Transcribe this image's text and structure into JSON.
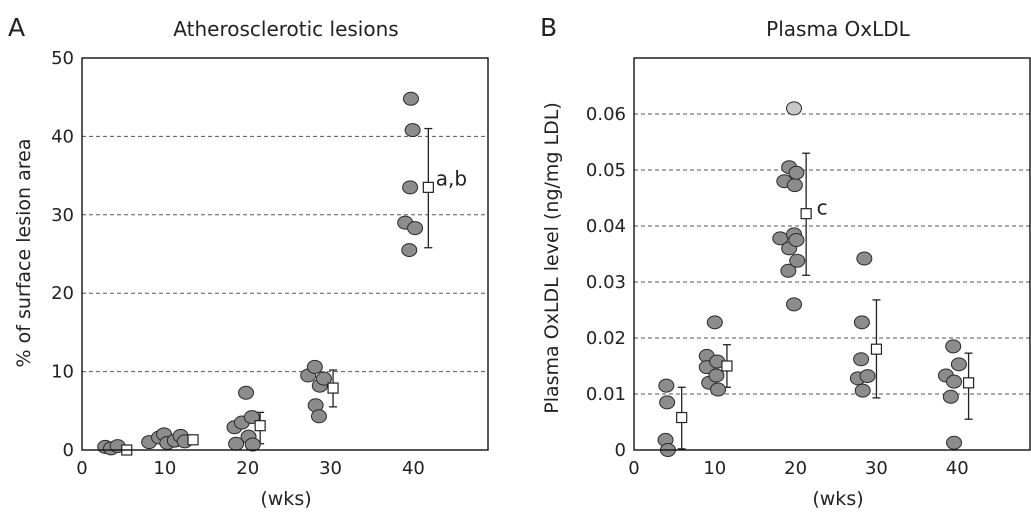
{
  "chart_data": [
    {
      "type": "scatter",
      "panel_label": "A",
      "title": "Atherosclerotic lesions",
      "xlabel": "(wks)",
      "ylabel": "% of surface lesion area",
      "xlim": [
        0,
        49
      ],
      "ylim": [
        0,
        50
      ],
      "xticks": [
        0,
        10,
        20,
        30,
        40
      ],
      "yticks": [
        0,
        10,
        20,
        30,
        40,
        50
      ],
      "ytick_labels": [
        "0",
        "10",
        "20",
        "30",
        "40",
        "50"
      ],
      "grid_y": [
        10,
        20,
        30,
        40
      ],
      "grid": "y-dashed",
      "points": [
        {
          "x": 2.8,
          "y": 0.4
        },
        {
          "x": 3.5,
          "y": 0.2
        },
        {
          "x": 4.3,
          "y": 0.5
        },
        {
          "x": 8.1,
          "y": 1.0
        },
        {
          "x": 9.3,
          "y": 1.6
        },
        {
          "x": 9.9,
          "y": 2.0
        },
        {
          "x": 10.3,
          "y": 0.9
        },
        {
          "x": 11.2,
          "y": 1.2
        },
        {
          "x": 11.9,
          "y": 1.8
        },
        {
          "x": 12.4,
          "y": 1.1
        },
        {
          "x": 18.4,
          "y": 2.9
        },
        {
          "x": 18.6,
          "y": 0.8
        },
        {
          "x": 19.3,
          "y": 3.5
        },
        {
          "x": 19.8,
          "y": 7.3
        },
        {
          "x": 20.1,
          "y": 1.7
        },
        {
          "x": 20.5,
          "y": 4.2
        },
        {
          "x": 20.6,
          "y": 0.7
        },
        {
          "x": 27.3,
          "y": 9.5
        },
        {
          "x": 28.1,
          "y": 10.6
        },
        {
          "x": 28.2,
          "y": 5.7
        },
        {
          "x": 28.6,
          "y": 4.3
        },
        {
          "x": 28.7,
          "y": 8.2
        },
        {
          "x": 29.2,
          "y": 9.1
        },
        {
          "x": 39.0,
          "y": 29.0
        },
        {
          "x": 39.5,
          "y": 25.5
        },
        {
          "x": 39.6,
          "y": 33.5
        },
        {
          "x": 39.7,
          "y": 44.8
        },
        {
          "x": 39.9,
          "y": 40.8
        },
        {
          "x": 40.2,
          "y": 28.3
        }
      ],
      "means": [
        {
          "x": 5.4,
          "mean": 0.0,
          "low": 0.0,
          "high": 0.4
        },
        {
          "x": 13.4,
          "mean": 1.3,
          "low": 0.8,
          "high": 1.9
        },
        {
          "x": 21.5,
          "mean": 3.1,
          "low": 0.8,
          "high": 4.8
        },
        {
          "x": 30.3,
          "mean": 7.9,
          "low": 5.5,
          "high": 10.2
        },
        {
          "x": 41.8,
          "mean": 33.5,
          "low": 25.8,
          "high": 41.0
        }
      ],
      "annotations": [
        {
          "text": "a,b",
          "x": 42.7,
          "y": 34.6
        }
      ]
    },
    {
      "type": "scatter",
      "panel_label": "B",
      "title": "Plasma OxLDL",
      "xlabel": "(wks)",
      "ylabel": "Plasma OxLDL level (ng/mg LDL)",
      "xlim": [
        0,
        49
      ],
      "ylim": [
        0,
        0.07
      ],
      "xticks": [
        0,
        10,
        20,
        30,
        40
      ],
      "yticks": [
        0,
        0.01,
        0.02,
        0.03,
        0.04,
        0.05,
        0.06
      ],
      "ytick_labels": [
        "0",
        "0.01",
        "0.02",
        "0.03",
        "0.04",
        "0.05",
        "0.06"
      ],
      "grid_y": [
        0.01,
        0.02,
        0.03,
        0.04,
        0.05,
        0.06
      ],
      "grid": "y-dashed",
      "points": [
        {
          "x": 4.0,
          "y": 0.0115
        },
        {
          "x": 4.1,
          "y": 0.0085
        },
        {
          "x": 3.9,
          "y": 0.0018
        },
        {
          "x": 4.2,
          "y": 0.0
        },
        {
          "x": 9.0,
          "y": 0.0168
        },
        {
          "x": 9.0,
          "y": 0.0148
        },
        {
          "x": 9.3,
          "y": 0.012
        },
        {
          "x": 10.0,
          "y": 0.0228
        },
        {
          "x": 10.3,
          "y": 0.0158
        },
        {
          "x": 10.2,
          "y": 0.0133
        },
        {
          "x": 10.4,
          "y": 0.0108
        },
        {
          "x": 18.1,
          "y": 0.0378
        },
        {
          "x": 18.6,
          "y": 0.048
        },
        {
          "x": 19.2,
          "y": 0.0505
        },
        {
          "x": 19.2,
          "y": 0.036
        },
        {
          "x": 19.1,
          "y": 0.032
        },
        {
          "x": 19.8,
          "y": 0.061,
          "light": true
        },
        {
          "x": 19.9,
          "y": 0.0473
        },
        {
          "x": 19.8,
          "y": 0.0385
        },
        {
          "x": 19.8,
          "y": 0.026
        },
        {
          "x": 20.1,
          "y": 0.0495
        },
        {
          "x": 20.1,
          "y": 0.0375
        },
        {
          "x": 20.2,
          "y": 0.0338
        },
        {
          "x": 27.7,
          "y": 0.0128
        },
        {
          "x": 28.1,
          "y": 0.0162
        },
        {
          "x": 28.2,
          "y": 0.0228
        },
        {
          "x": 28.3,
          "y": 0.0106
        },
        {
          "x": 28.5,
          "y": 0.0342
        },
        {
          "x": 28.9,
          "y": 0.0132
        },
        {
          "x": 38.6,
          "y": 0.0133
        },
        {
          "x": 39.2,
          "y": 0.0095
        },
        {
          "x": 39.5,
          "y": 0.0185
        },
        {
          "x": 39.6,
          "y": 0.0122
        },
        {
          "x": 39.6,
          "y": 0.0013
        },
        {
          "x": 40.2,
          "y": 0.0153
        }
      ],
      "means": [
        {
          "x": 5.9,
          "mean": 0.0058,
          "low": 0.0002,
          "high": 0.0112
        },
        {
          "x": 11.5,
          "mean": 0.015,
          "low": 0.0112,
          "high": 0.0188
        },
        {
          "x": 21.3,
          "mean": 0.0422,
          "low": 0.0312,
          "high": 0.053
        },
        {
          "x": 30.0,
          "mean": 0.018,
          "low": 0.0093,
          "high": 0.0268
        },
        {
          "x": 41.4,
          "mean": 0.012,
          "low": 0.0055,
          "high": 0.0173
        }
      ],
      "annotations": [
        {
          "text": "c",
          "x": 22.6,
          "y": 0.0433
        }
      ]
    }
  ]
}
